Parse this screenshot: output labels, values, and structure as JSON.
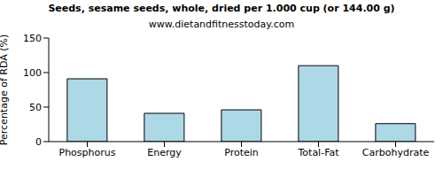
{
  "chart_data": {
    "type": "bar",
    "title": "Seeds, sesame seeds, whole, dried per 1.000 cup (or 144.00 g)",
    "subtitle": "www.dietandfitnesstoday.com",
    "ylabel": "Percentage of RDA (%)",
    "categories": [
      "Phosphorus",
      "Energy",
      "Protein",
      "Total-Fat",
      "Carbohydrate"
    ],
    "values": [
      91,
      41,
      46,
      110,
      26
    ],
    "color": "#add8e6",
    "ylim": [
      0,
      150
    ],
    "yticks": [
      0,
      50,
      100,
      150
    ],
    "grid": false
  }
}
